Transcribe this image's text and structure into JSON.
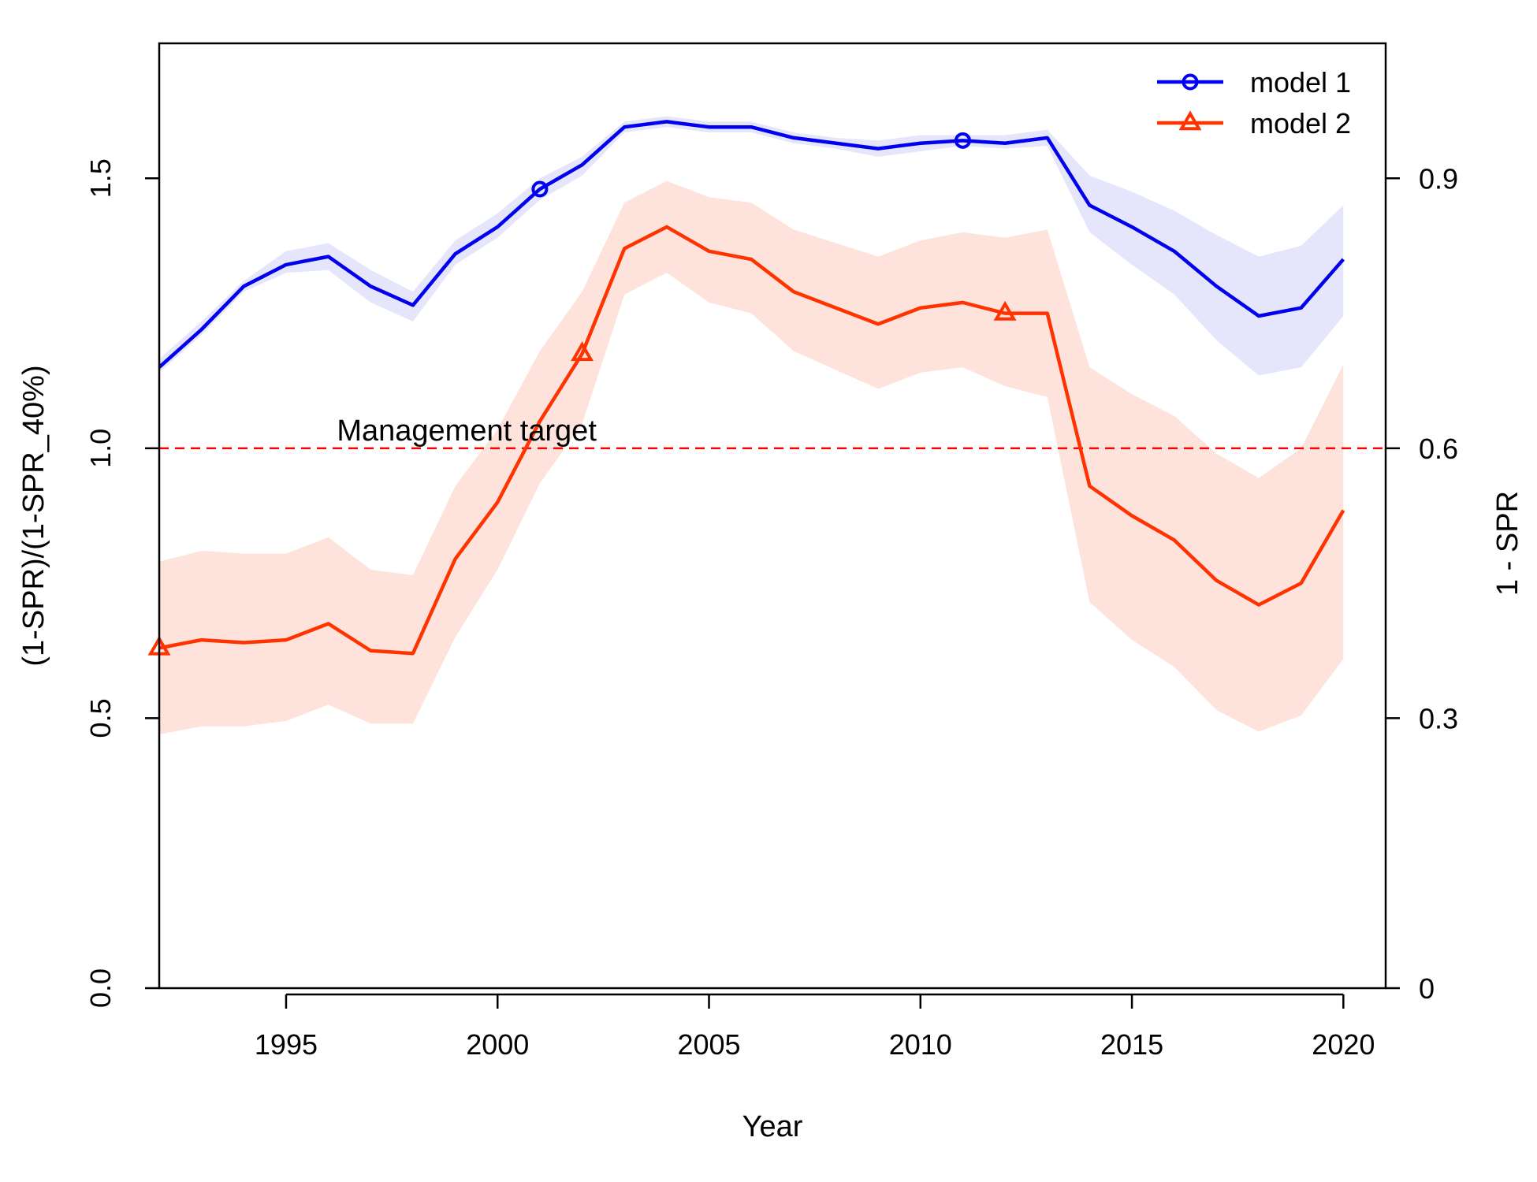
{
  "chart_data": {
    "type": "line",
    "xlabel": "Year",
    "ylabel": "(1-SPR)/(1-SPR_40%)",
    "ylabel_right": "1 - SPR",
    "xlim": [
      1992,
      2021
    ],
    "ylim": [
      0,
      1.75
    ],
    "x_ticks": [
      "1995",
      "2000",
      "2005",
      "2010",
      "2015",
      "2020"
    ],
    "y_ticks": [
      "0.0",
      "0.5",
      "1.0",
      "1.5"
    ],
    "y_ticks_right": [
      "0",
      "0.3",
      "0.6",
      "0.9"
    ],
    "grid": false,
    "legend_position": "top-right",
    "reference_line": {
      "y": 1.0,
      "label": "Management target",
      "color": "#ff0000"
    },
    "x": [
      1992,
      1993,
      1994,
      1995,
      1996,
      1997,
      1998,
      1999,
      2000,
      2001,
      2002,
      2003,
      2004,
      2005,
      2006,
      2007,
      2008,
      2009,
      2010,
      2011,
      2012,
      2013,
      2014,
      2015,
      2016,
      2017,
      2018,
      2019,
      2020
    ],
    "series": [
      {
        "name": "model 1",
        "color": "#0000ee",
        "band_color": "#e5e5fb",
        "marker": "circle",
        "marker_years": [
          2001,
          2011
        ],
        "values": [
          1.15,
          1.22,
          1.3,
          1.34,
          1.355,
          1.3,
          1.265,
          1.36,
          1.41,
          1.48,
          1.525,
          1.595,
          1.605,
          1.595,
          1.595,
          1.575,
          1.565,
          1.555,
          1.565,
          1.57,
          1.565,
          1.575,
          1.45,
          1.41,
          1.365,
          1.3,
          1.245,
          1.26,
          1.35
        ],
        "lower": [
          1.14,
          1.21,
          1.29,
          1.325,
          1.33,
          1.27,
          1.235,
          1.34,
          1.39,
          1.46,
          1.505,
          1.585,
          1.595,
          1.585,
          1.585,
          1.565,
          1.555,
          1.54,
          1.55,
          1.56,
          1.555,
          1.56,
          1.4,
          1.34,
          1.285,
          1.2,
          1.135,
          1.15,
          1.245
        ],
        "upper": [
          1.165,
          1.235,
          1.31,
          1.365,
          1.38,
          1.33,
          1.29,
          1.385,
          1.435,
          1.5,
          1.54,
          1.605,
          1.615,
          1.605,
          1.605,
          1.585,
          1.575,
          1.57,
          1.58,
          1.58,
          1.58,
          1.59,
          1.505,
          1.475,
          1.44,
          1.395,
          1.355,
          1.375,
          1.45
        ]
      },
      {
        "name": "model 2",
        "color": "#ff3300",
        "band_color": "#fde3dc",
        "marker": "triangle",
        "marker_years": [
          1992,
          2002,
          2012
        ],
        "values": [
          0.63,
          0.645,
          0.64,
          0.645,
          0.675,
          0.625,
          0.62,
          0.795,
          0.9,
          1.05,
          1.175,
          1.37,
          1.41,
          1.365,
          1.35,
          1.29,
          1.26,
          1.23,
          1.26,
          1.27,
          1.25,
          1.25,
          0.93,
          0.875,
          0.83,
          0.755,
          0.71,
          0.75,
          0.885
        ],
        "lower": [
          0.47,
          0.485,
          0.485,
          0.495,
          0.525,
          0.49,
          0.49,
          0.65,
          0.775,
          0.935,
          1.045,
          1.285,
          1.325,
          1.27,
          1.25,
          1.18,
          1.145,
          1.11,
          1.14,
          1.15,
          1.115,
          1.095,
          0.715,
          0.645,
          0.595,
          0.515,
          0.475,
          0.505,
          0.61
        ],
        "upper": [
          0.79,
          0.81,
          0.805,
          0.805,
          0.835,
          0.775,
          0.765,
          0.93,
          1.035,
          1.18,
          1.29,
          1.455,
          1.495,
          1.465,
          1.455,
          1.405,
          1.38,
          1.355,
          1.385,
          1.4,
          1.39,
          1.405,
          1.15,
          1.1,
          1.06,
          0.99,
          0.945,
          1.0,
          1.155
        ]
      }
    ]
  }
}
